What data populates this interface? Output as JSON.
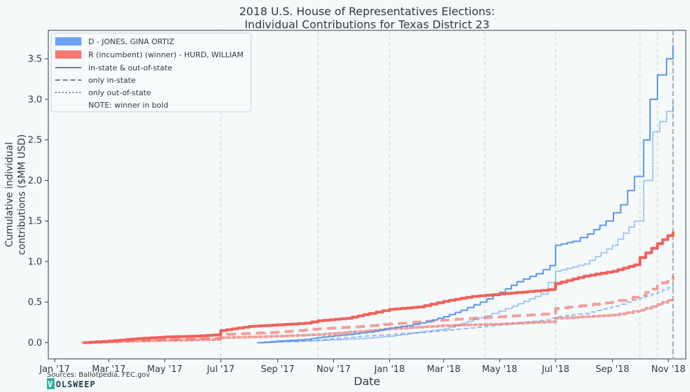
{
  "chart_data": {
    "type": "line",
    "title": [
      "2018 U.S. House of Representatives Elections:",
      "Individual Contributions for Texas District 23"
    ],
    "xlabel": "Date",
    "ylabel": [
      "Cumulative individual",
      "contributions ($MM USD)"
    ],
    "x_ticks": [
      {
        "date": "2017-01-01",
        "label": "Jan '17"
      },
      {
        "date": "2017-03-01",
        "label": "Mar '17"
      },
      {
        "date": "2017-05-01",
        "label": "May '17"
      },
      {
        "date": "2017-07-01",
        "label": "Jul '17"
      },
      {
        "date": "2017-09-01",
        "label": "Sep '17"
      },
      {
        "date": "2017-11-01",
        "label": "Nov '17"
      },
      {
        "date": "2018-01-01",
        "label": "Jan '18"
      },
      {
        "date": "2018-03-01",
        "label": "Mar '18"
      },
      {
        "date": "2018-05-01",
        "label": "May '18"
      },
      {
        "date": "2018-07-01",
        "label": "Jul '18"
      },
      {
        "date": "2018-09-01",
        "label": "Sep '18"
      },
      {
        "date": "2018-11-01",
        "label": "Nov '18"
      }
    ],
    "y_ticks": [
      0.0,
      0.5,
      1.0,
      1.5,
      2.0,
      2.5,
      3.0,
      3.5
    ],
    "y_tick_labels": [
      "0.0",
      "0.5",
      "1.0",
      "1.5",
      "2.0",
      "2.5",
      "3.0",
      "3.5"
    ],
    "xlim": [
      "2016-12-25",
      "2018-11-20"
    ],
    "ylim": [
      -0.2,
      3.85
    ],
    "grid": "vertical dashed lines at significant dates",
    "vertical_marker_dates": [
      "2017-07-01",
      "2017-10-15",
      "2018-01-01",
      "2018-04-15",
      "2018-07-01",
      "2018-10-01",
      "2018-10-20",
      "2018-11-06"
    ],
    "election_day_marker": "2018-11-06",
    "legend_position": "top-left",
    "legend": [
      {
        "label": "D - JONES, GINA ORTIZ",
        "kind": "patch",
        "color": "#6aa3f5"
      },
      {
        "label": "R (incumbent) (winner) - HURD, WILLIAM",
        "kind": "patch",
        "color": "#f47a72"
      },
      {
        "label": "in-state & out-of-state",
        "kind": "line",
        "dash": "solid",
        "color": "#6b7f95"
      },
      {
        "label": "only in-state",
        "kind": "line",
        "dash": "dashed",
        "color": "#6b7f95"
      },
      {
        "label": "only out-of-state",
        "kind": "line",
        "dash": "dotted",
        "color": "#6b7f95"
      },
      {
        "label": "NOTE: winner in bold",
        "kind": "note"
      }
    ],
    "series": [
      {
        "name": "D - JONES, GINA ORTIZ",
        "party": "D",
        "subset": "in-state & out-of-state",
        "color": "#5b93e6",
        "dash": "solid",
        "width": 2,
        "opacity": 1,
        "points": [
          [
            "2017-08-10",
            0.0
          ],
          [
            "2017-09-01",
            0.02
          ],
          [
            "2017-10-01",
            0.04
          ],
          [
            "2017-10-20",
            0.07
          ],
          [
            "2017-11-15",
            0.1
          ],
          [
            "2017-12-15",
            0.14
          ],
          [
            "2018-01-01",
            0.18
          ],
          [
            "2018-01-20",
            0.21
          ],
          [
            "2018-02-10",
            0.26
          ],
          [
            "2018-03-01",
            0.32
          ],
          [
            "2018-03-20",
            0.4
          ],
          [
            "2018-04-10",
            0.5
          ],
          [
            "2018-05-01",
            0.62
          ],
          [
            "2018-05-20",
            0.75
          ],
          [
            "2018-06-10",
            0.85
          ],
          [
            "2018-06-25",
            0.95
          ],
          [
            "2018-07-01",
            1.2
          ],
          [
            "2018-07-20",
            1.25
          ],
          [
            "2018-08-05",
            1.34
          ],
          [
            "2018-08-25",
            1.5
          ],
          [
            "2018-09-10",
            1.7
          ],
          [
            "2018-09-25",
            2.05
          ],
          [
            "2018-10-05",
            2.5
          ],
          [
            "2018-10-12",
            3.0
          ],
          [
            "2018-10-20",
            3.3
          ],
          [
            "2018-10-30",
            3.5
          ],
          [
            "2018-11-06",
            3.67
          ]
        ]
      },
      {
        "name": "D - JONES, GINA ORTIZ",
        "party": "D",
        "subset": "only in-state",
        "color": "#5b93e6",
        "dash": "dashed",
        "width": 2,
        "opacity": 0.6,
        "points": [
          [
            "2017-08-10",
            0.0
          ],
          [
            "2017-10-01",
            0.02
          ],
          [
            "2017-12-01",
            0.08
          ],
          [
            "2018-01-01",
            0.1
          ],
          [
            "2018-03-01",
            0.15
          ],
          [
            "2018-05-01",
            0.22
          ],
          [
            "2018-06-20",
            0.28
          ],
          [
            "2018-07-01",
            0.32
          ],
          [
            "2018-08-01",
            0.36
          ],
          [
            "2018-09-01",
            0.45
          ],
          [
            "2018-10-01",
            0.55
          ],
          [
            "2018-10-20",
            0.62
          ],
          [
            "2018-11-06",
            0.71
          ]
        ]
      },
      {
        "name": "D - JONES, GINA ORTIZ",
        "party": "D",
        "subset": "only out-of-state",
        "color": "#5b93e6",
        "dash": "dotted",
        "width": 2,
        "opacity": 0.6,
        "points": [
          [
            "2017-08-10",
            0.0
          ],
          [
            "2017-10-01",
            0.02
          ],
          [
            "2017-12-01",
            0.05
          ],
          [
            "2018-01-01",
            0.08
          ],
          [
            "2018-03-01",
            0.17
          ],
          [
            "2018-04-15",
            0.33
          ],
          [
            "2018-05-15",
            0.45
          ],
          [
            "2018-06-15",
            0.6
          ],
          [
            "2018-07-01",
            0.88
          ],
          [
            "2018-08-01",
            0.97
          ],
          [
            "2018-09-01",
            1.2
          ],
          [
            "2018-09-25",
            1.5
          ],
          [
            "2018-10-05",
            2.0
          ],
          [
            "2018-10-15",
            2.6
          ],
          [
            "2018-10-30",
            2.85
          ],
          [
            "2018-11-06",
            2.97
          ]
        ]
      },
      {
        "name": "R (incumbent) (winner) - HURD, WILLIAM",
        "party": "R",
        "subset": "in-state & out-of-state",
        "color": "#f0625c",
        "dash": "solid",
        "width": 4,
        "opacity": 1,
        "points": [
          [
            "2017-02-01",
            0.0
          ],
          [
            "2017-03-01",
            0.02
          ],
          [
            "2017-04-01",
            0.05
          ],
          [
            "2017-05-01",
            0.07
          ],
          [
            "2017-06-01",
            0.08
          ],
          [
            "2017-06-30",
            0.1
          ],
          [
            "2017-07-01",
            0.15
          ],
          [
            "2017-08-01",
            0.2
          ],
          [
            "2017-09-01",
            0.22
          ],
          [
            "2017-10-01",
            0.24
          ],
          [
            "2017-10-15",
            0.27
          ],
          [
            "2017-11-15",
            0.3
          ],
          [
            "2017-12-10",
            0.36
          ],
          [
            "2018-01-01",
            0.41
          ],
          [
            "2018-02-01",
            0.44
          ],
          [
            "2018-03-01",
            0.51
          ],
          [
            "2018-04-01",
            0.57
          ],
          [
            "2018-05-01",
            0.6
          ],
          [
            "2018-06-01",
            0.63
          ],
          [
            "2018-06-30",
            0.66
          ],
          [
            "2018-07-01",
            0.73
          ],
          [
            "2018-08-01",
            0.82
          ],
          [
            "2018-09-01",
            0.88
          ],
          [
            "2018-09-25",
            0.96
          ],
          [
            "2018-10-01",
            1.05
          ],
          [
            "2018-10-20",
            1.22
          ],
          [
            "2018-11-06",
            1.37
          ]
        ]
      },
      {
        "name": "R (incumbent) (winner) - HURD, WILLIAM",
        "party": "R",
        "subset": "only in-state",
        "color": "#f0625c",
        "dash": "dashed",
        "width": 4,
        "opacity": 0.6,
        "points": [
          [
            "2017-02-01",
            0.0
          ],
          [
            "2017-04-01",
            0.03
          ],
          [
            "2017-06-30",
            0.06
          ],
          [
            "2017-07-01",
            0.1
          ],
          [
            "2017-09-01",
            0.13
          ],
          [
            "2017-10-15",
            0.17
          ],
          [
            "2017-12-01",
            0.2
          ],
          [
            "2018-01-01",
            0.23
          ],
          [
            "2018-03-01",
            0.28
          ],
          [
            "2018-05-01",
            0.32
          ],
          [
            "2018-06-30",
            0.36
          ],
          [
            "2018-07-01",
            0.42
          ],
          [
            "2018-09-01",
            0.5
          ],
          [
            "2018-10-01",
            0.58
          ],
          [
            "2018-10-20",
            0.7
          ],
          [
            "2018-11-06",
            0.82
          ]
        ]
      },
      {
        "name": "R (incumbent) (winner) - HURD, WILLIAM",
        "party": "R",
        "subset": "only out-of-state",
        "color": "#f0625c",
        "dash": "dotted",
        "width": 4,
        "opacity": 0.6,
        "points": [
          [
            "2017-02-01",
            0.0
          ],
          [
            "2017-04-01",
            0.02
          ],
          [
            "2017-06-30",
            0.04
          ],
          [
            "2017-07-01",
            0.06
          ],
          [
            "2017-09-01",
            0.08
          ],
          [
            "2017-10-15",
            0.1
          ],
          [
            "2017-12-01",
            0.14
          ],
          [
            "2018-01-01",
            0.17
          ],
          [
            "2018-03-01",
            0.21
          ],
          [
            "2018-05-01",
            0.23
          ],
          [
            "2018-06-30",
            0.26
          ],
          [
            "2018-07-01",
            0.3
          ],
          [
            "2018-09-01",
            0.34
          ],
          [
            "2018-10-01",
            0.4
          ],
          [
            "2018-10-20",
            0.47
          ],
          [
            "2018-11-06",
            0.55
          ]
        ]
      }
    ]
  },
  "footer": {
    "sources": "Sources: Ballotpedia, FEC.gov",
    "brand_box": "V",
    "brand_rest": "OLSWEEP",
    "brand_color": "#2ab0a8"
  }
}
